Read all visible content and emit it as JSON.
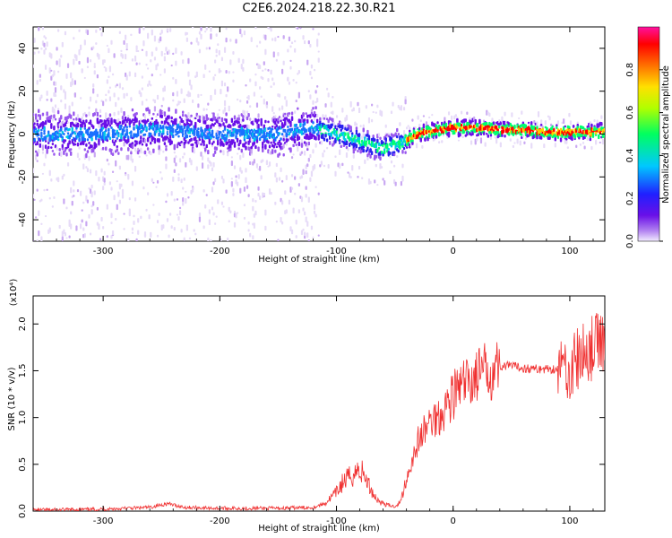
{
  "title": "C2E6.2024.218.22.30.R21",
  "colors": {
    "snr_line": "#f03030",
    "spec_purple": "#7a2be8",
    "spec_light": "#d8c0f5",
    "axis": "#000000"
  },
  "chart_data": [
    {
      "type": "heatmap",
      "name": "spectrogram",
      "title": "C2E6.2024.218.22.30.R21",
      "xlabel": "Height of straight line (km)",
      "ylabel": "Frequency (Hz)",
      "xlim": [
        -360,
        130
      ],
      "ylim": [
        -50,
        50
      ],
      "x_ticks": [
        -300,
        -200,
        -100,
        0,
        100
      ],
      "y_ticks": [
        -40,
        -20,
        0,
        20,
        40
      ],
      "x_tick_labels": [
        "-300",
        "-200",
        "-100",
        "0",
        "100"
      ],
      "y_tick_labels": [
        "-40",
        "-20",
        "0",
        "20",
        "40"
      ],
      "colorbar": {
        "label": "Normalized spectral amplitude",
        "range": [
          0,
          1
        ],
        "ticks": [
          0.0,
          0.2,
          0.4,
          0.6,
          0.8
        ],
        "tick_labels": [
          "0.0",
          "0.2",
          "0.4",
          "0.6",
          "0.8"
        ]
      },
      "ridge_track": {
        "x": [
          -360,
          -300,
          -250,
          -200,
          -150,
          -120,
          -100,
          -80,
          -60,
          -50,
          -40,
          -30,
          -20,
          -10,
          0,
          20,
          40,
          60,
          80,
          100,
          130
        ],
        "freq": [
          0,
          0,
          2,
          0,
          0,
          3,
          0,
          -3,
          -7,
          -5,
          -3,
          0,
          1,
          2,
          3,
          3,
          2,
          2,
          1,
          1,
          1
        ]
      }
    },
    {
      "type": "line",
      "name": "snr",
      "xlabel": "Height of straight line (km)",
      "ylabel": "SNR (10 * v/v)",
      "exponent_label": "(x10⁴)",
      "xlim": [
        -360,
        130
      ],
      "ylim": [
        0,
        2.3
      ],
      "x_ticks": [
        -300,
        -200,
        -100,
        0,
        100
      ],
      "y_ticks": [
        0.0,
        0.5,
        1.0,
        1.5,
        2.0
      ],
      "x_tick_labels": [
        "-300",
        "-200",
        "-100",
        "0",
        "100"
      ],
      "y_tick_labels": [
        "0.0",
        "0.5",
        "1.0",
        "1.5",
        "2.0"
      ],
      "series": [
        {
          "x": [
            -360,
            -300,
            -260,
            -245,
            -230,
            -200,
            -150,
            -120,
            -110,
            -100,
            -95,
            -90,
            -85,
            -80,
            -75,
            -70,
            -65,
            -60,
            -55,
            -50,
            -45,
            -40,
            -35,
            -30,
            -25,
            -20,
            -15,
            -10,
            -5,
            0,
            10,
            20,
            30,
            40,
            50,
            60,
            70,
            80,
            90,
            95,
            100,
            105,
            110,
            115,
            120,
            125,
            130
          ],
          "y": [
            0.01,
            0.02,
            0.04,
            0.08,
            0.04,
            0.03,
            0.03,
            0.04,
            0.08,
            0.2,
            0.3,
            0.35,
            0.4,
            0.45,
            0.35,
            0.22,
            0.12,
            0.08,
            0.06,
            0.05,
            0.1,
            0.35,
            0.55,
            0.75,
            0.85,
            0.95,
            1.0,
            1.05,
            1.15,
            1.25,
            1.35,
            1.45,
            1.5,
            1.55,
            1.55,
            1.53,
            1.52,
            1.52,
            1.52,
            1.55,
            1.5,
            1.6,
            1.65,
            1.7,
            1.75,
            1.8,
            1.85
          ]
        }
      ]
    }
  ]
}
